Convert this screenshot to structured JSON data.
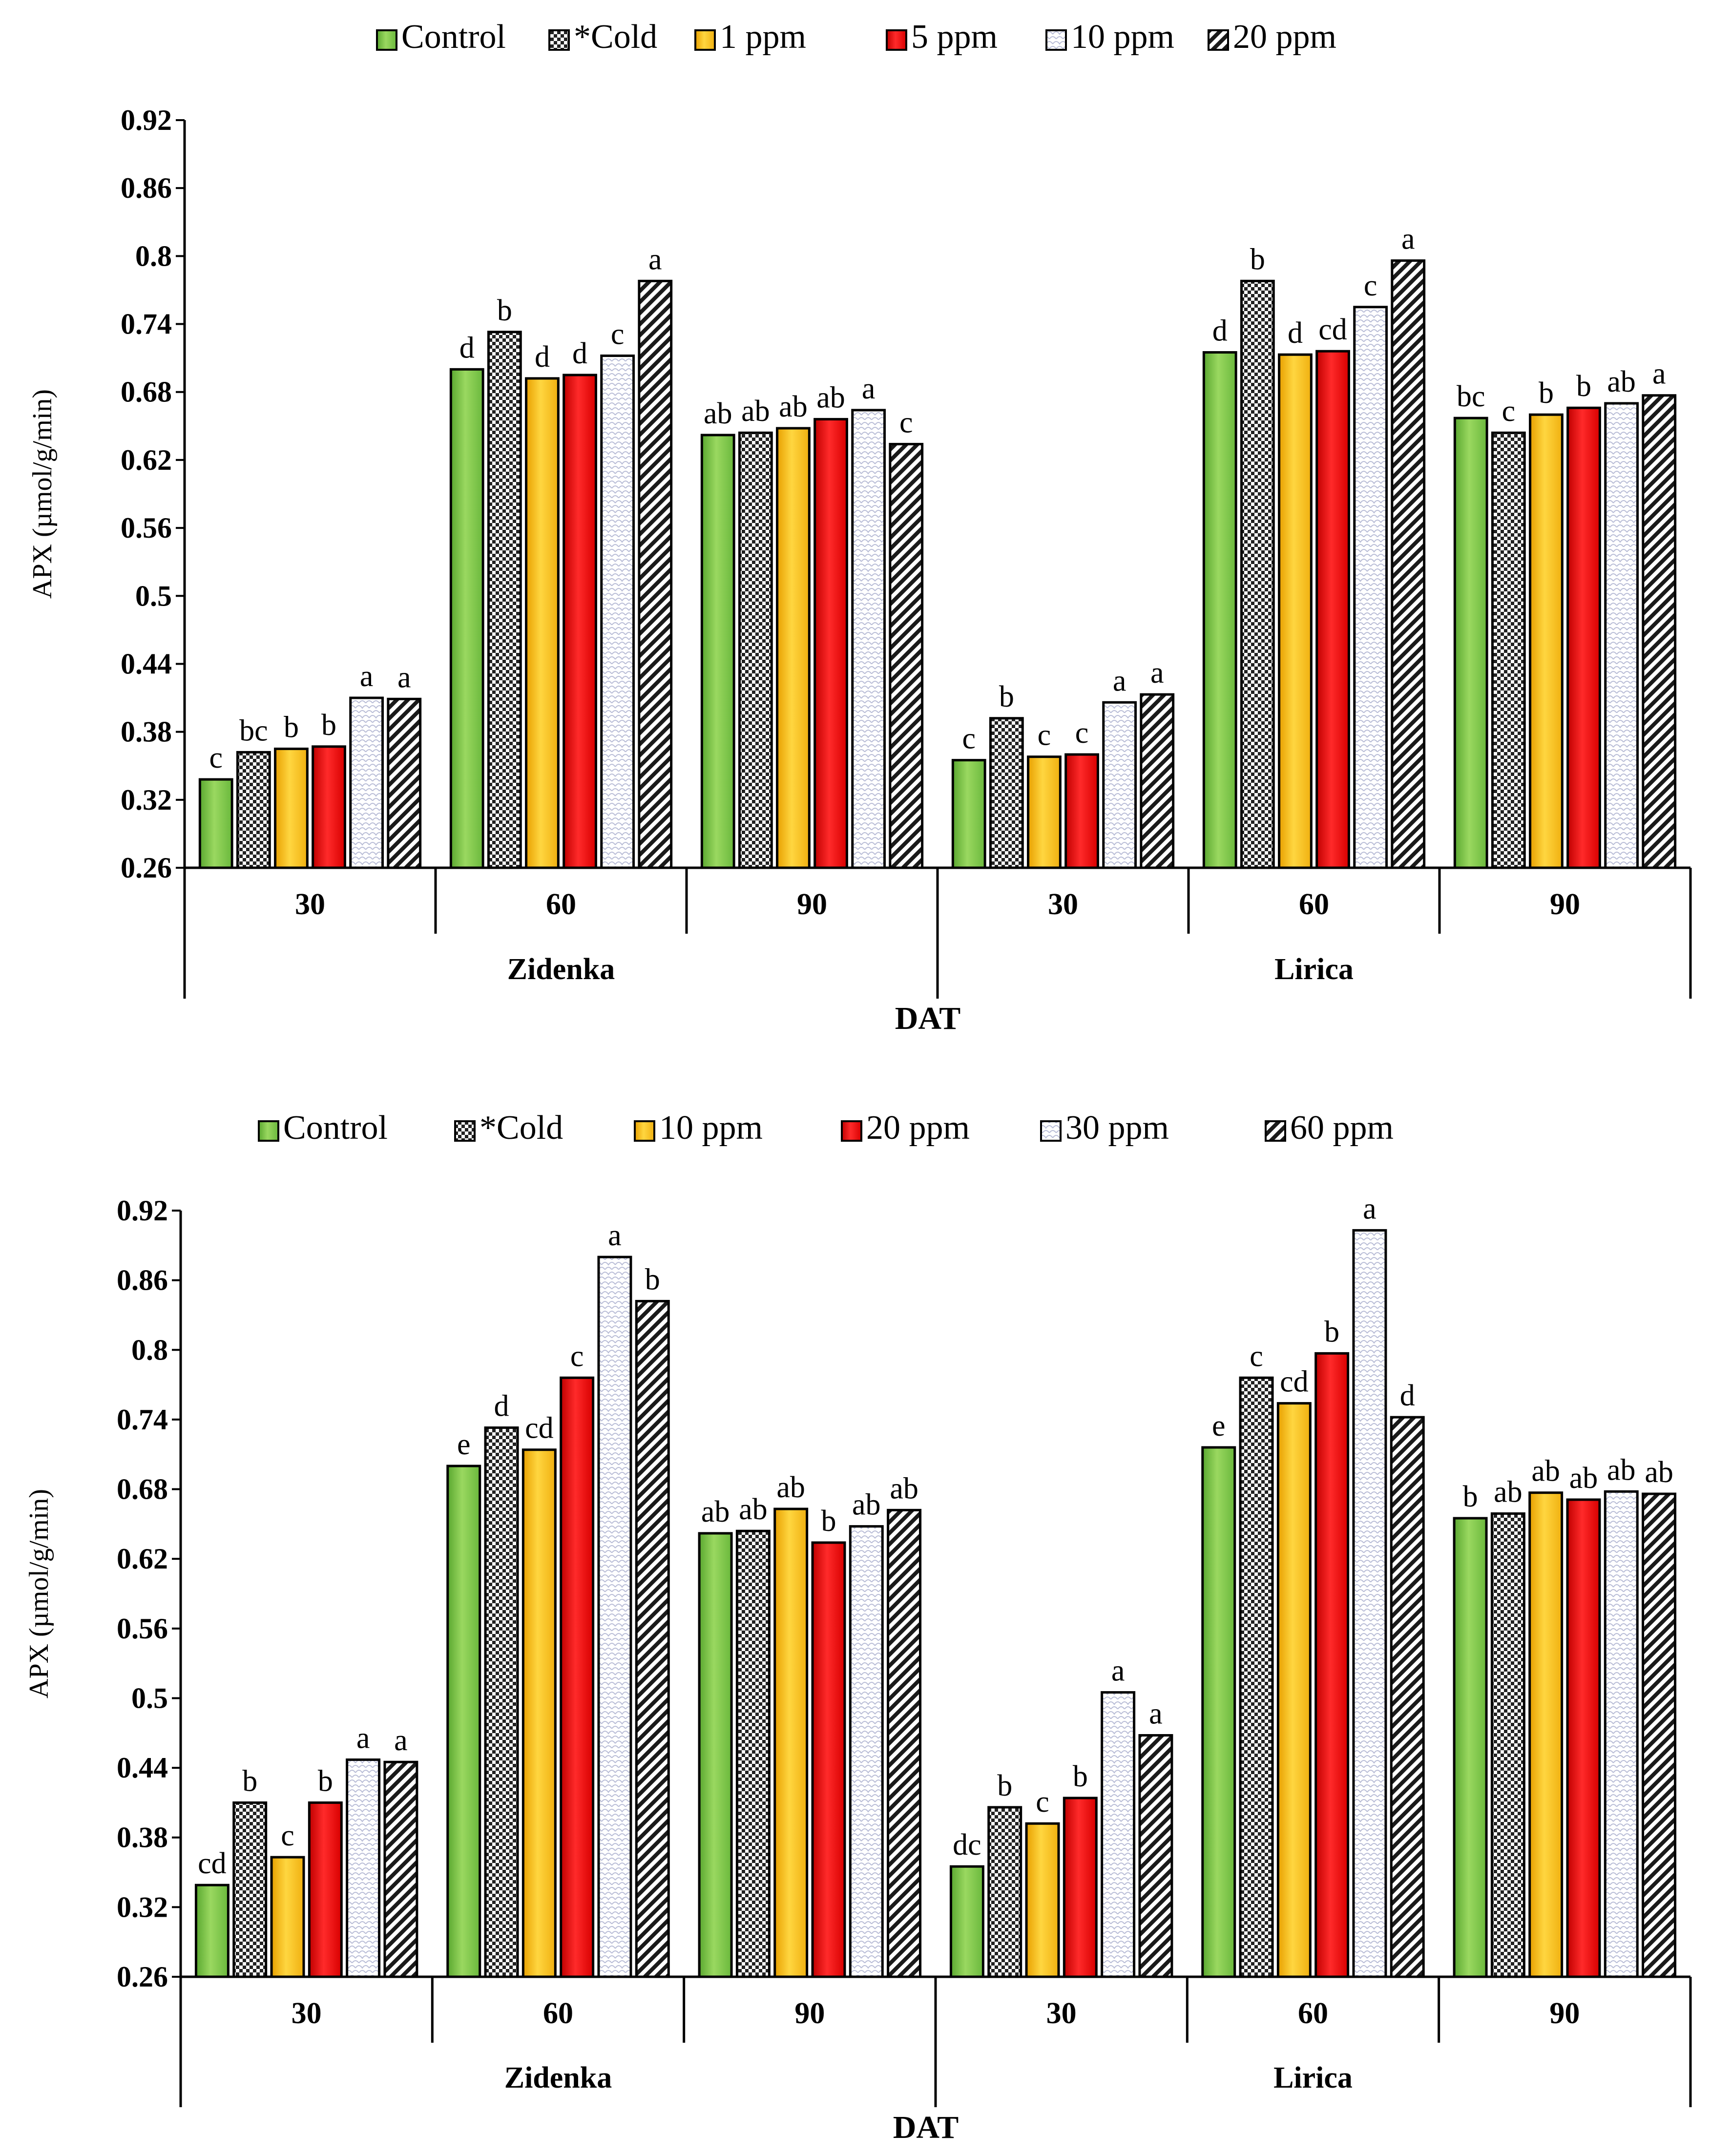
{
  "chart_data": [
    {
      "type": "bar",
      "title": "",
      "ylabel": "APX  (µmol/g/min)",
      "xlabel": "DAT",
      "ylim": [
        0.26,
        0.92
      ],
      "yticks": [
        "0.26",
        "0.32",
        "0.38",
        "0.44",
        "0.5",
        "0.56",
        "0.62",
        "0.68",
        "0.74",
        "0.8",
        "0.86",
        "0.92"
      ],
      "grid": false,
      "legend_position": "top",
      "groups": [
        "Zidenka",
        "Lirica"
      ],
      "categories": [
        "30",
        "60",
        "90",
        "30",
        "60",
        "90"
      ],
      "series": [
        {
          "name": "Control",
          "pattern": "solid-green",
          "values": [
            0.338,
            0.7,
            0.642,
            0.355,
            0.715,
            0.657
          ],
          "letters": [
            "c",
            "d",
            "ab",
            "c",
            "d",
            "bc"
          ]
        },
        {
          "name": "*Cold",
          "pattern": "checker",
          "values": [
            0.362,
            0.733,
            0.644,
            0.392,
            0.778,
            0.644
          ],
          "letters": [
            "bc",
            "b",
            "ab",
            "b",
            "b",
            "c"
          ]
        },
        {
          "name": "1 ppm",
          "pattern": "solid-yellow",
          "values": [
            0.365,
            0.692,
            0.648,
            0.358,
            0.713,
            0.66
          ],
          "letters": [
            "b",
            "d",
            "ab",
            "c",
            "d",
            "b"
          ]
        },
        {
          "name": "5 ppm",
          "pattern": "solid-red",
          "values": [
            0.367,
            0.695,
            0.656,
            0.36,
            0.716,
            0.666
          ],
          "letters": [
            "b",
            "d",
            "ab",
            "c",
            "cd",
            "b"
          ]
        },
        {
          "name": "10 ppm",
          "pattern": "scale",
          "values": [
            0.41,
            0.712,
            0.664,
            0.406,
            0.755,
            0.67
          ],
          "letters": [
            "a",
            "c",
            "a",
            "a",
            "c",
            "ab"
          ]
        },
        {
          "name": "20 ppm",
          "pattern": "diagonal",
          "values": [
            0.409,
            0.778,
            0.634,
            0.413,
            0.796,
            0.677
          ],
          "letters": [
            "a",
            "a",
            "c",
            "a",
            "a",
            "a"
          ]
        }
      ]
    },
    {
      "type": "bar",
      "title": "",
      "ylabel": "APX (µmol/g/min)",
      "xlabel": "DAT",
      "ylim": [
        0.26,
        0.92
      ],
      "yticks": [
        "0.26",
        "0.32",
        "0.38",
        "0.44",
        "0.5",
        "0.56",
        "0.62",
        "0.68",
        "0.74",
        "0.8",
        "0.86",
        "0.92"
      ],
      "grid": false,
      "legend_position": "top",
      "groups": [
        "Zidenka",
        "Lirica"
      ],
      "categories": [
        "30",
        "60",
        "90",
        "30",
        "60",
        "90"
      ],
      "series": [
        {
          "name": "Control",
          "pattern": "solid-green",
          "values": [
            0.339,
            0.7,
            0.642,
            0.355,
            0.716,
            0.655
          ],
          "letters": [
            "cd",
            "e",
            "ab",
            "dc",
            "e",
            "b"
          ]
        },
        {
          "name": "*Cold",
          "pattern": "checker",
          "values": [
            0.41,
            0.733,
            0.644,
            0.406,
            0.776,
            0.659
          ],
          "letters": [
            "b",
            "d",
            "ab",
            "b",
            "c",
            "ab"
          ]
        },
        {
          "name": "10 ppm",
          "pattern": "solid-yellow",
          "values": [
            0.363,
            0.714,
            0.663,
            0.392,
            0.754,
            0.677
          ],
          "letters": [
            "c",
            "cd",
            "ab",
            "c",
            "cd",
            "ab"
          ]
        },
        {
          "name": "20 ppm",
          "pattern": "solid-red",
          "values": [
            0.41,
            0.776,
            0.634,
            0.414,
            0.797,
            0.671
          ],
          "letters": [
            "b",
            "c",
            "b",
            "b",
            "b",
            "ab"
          ]
        },
        {
          "name": "30 ppm",
          "pattern": "scale",
          "values": [
            0.447,
            0.88,
            0.648,
            0.505,
            0.903,
            0.678
          ],
          "letters": [
            "a",
            "a",
            "ab",
            "a",
            "a",
            "ab"
          ]
        },
        {
          "name": "60 ppm",
          "pattern": "diagonal",
          "values": [
            0.445,
            0.842,
            0.662,
            0.468,
            0.742,
            0.676
          ],
          "letters": [
            "a",
            "b",
            "ab",
            "a",
            "d",
            "ab"
          ]
        }
      ]
    }
  ]
}
